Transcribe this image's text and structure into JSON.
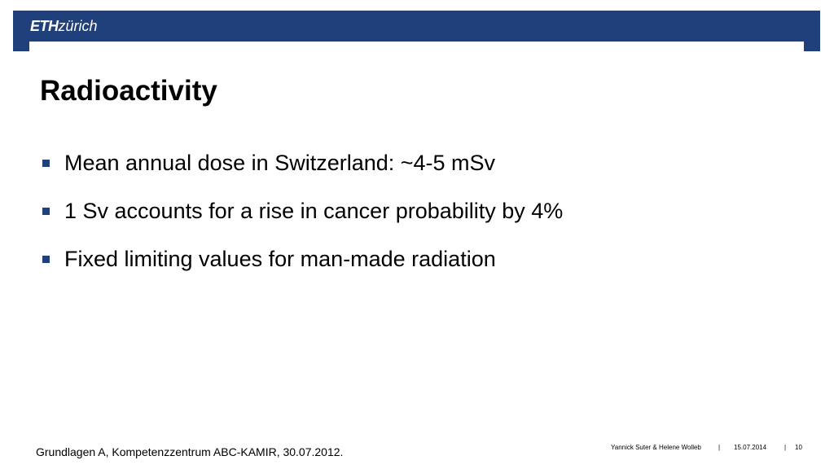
{
  "header": {
    "logo_bold": "ETH",
    "logo_light": "zürich",
    "color": "#1f407a"
  },
  "slide": {
    "title": "Radioactivity",
    "bullets": [
      "Mean annual dose in Switzerland: ~4-5 mSv",
      "1 Sv accounts for a rise in cancer probability by 4%",
      "Fixed limiting values for man-made radiation"
    ],
    "source_note": "Grundlagen A, Kompetenzzentrum ABC-KAMIR, 30.07.2012."
  },
  "footer": {
    "authors": "Yannick Suter & Helene Wolleb",
    "separator": "|",
    "date": "15.07.2014",
    "page_number": "10"
  }
}
